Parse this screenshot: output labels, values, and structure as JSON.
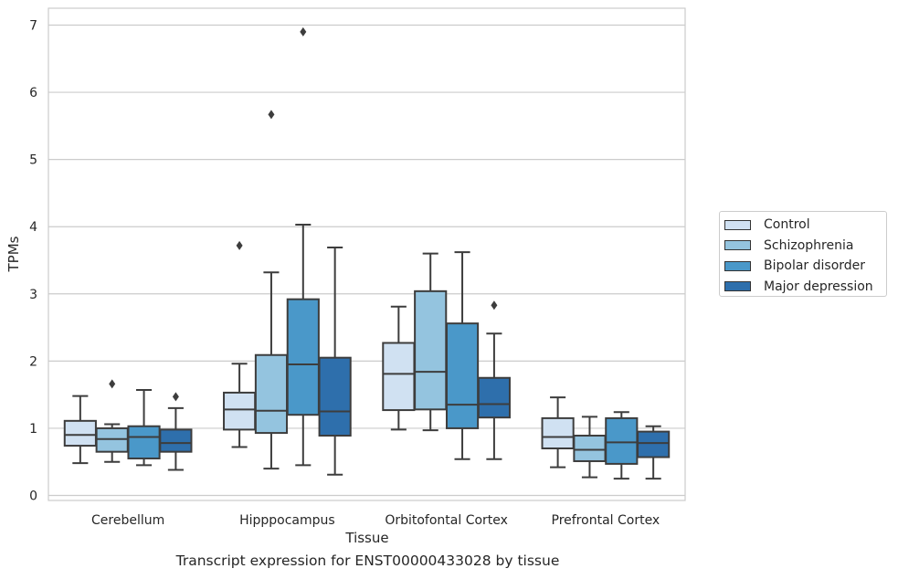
{
  "chart_data": {
    "type": "box",
    "xlabel": "Tissue",
    "ylabel": "TPMs",
    "caption": "Transcript expression for ENST00000433028 by tissue",
    "ylim": [
      -0.05,
      7.25
    ],
    "yticks": [
      "0",
      "1",
      "2",
      "3",
      "4",
      "5",
      "6",
      "7"
    ],
    "grid": true,
    "legend_position": "right",
    "categories": [
      "Cerebellum",
      "Hipppocampus",
      "Orbitofontal Cortex",
      "Prefrontal Cortex"
    ],
    "series": [
      {
        "name": "Control",
        "color": "#d0e1f2",
        "boxes": [
          {
            "whislo": 0.48,
            "q1": 0.74,
            "med": 0.9,
            "q3": 1.11,
            "whishi": 1.48,
            "fliers": []
          },
          {
            "whislo": 0.72,
            "q1": 0.98,
            "med": 1.28,
            "q3": 1.53,
            "whishi": 1.96,
            "fliers": [
              3.72
            ]
          },
          {
            "whislo": 0.98,
            "q1": 1.27,
            "med": 1.81,
            "q3": 2.27,
            "whishi": 2.81,
            "fliers": []
          },
          {
            "whislo": 0.42,
            "q1": 0.7,
            "med": 0.87,
            "q3": 1.15,
            "whishi": 1.46,
            "fliers": []
          }
        ]
      },
      {
        "name": "Schizophrenia",
        "color": "#94c4df",
        "boxes": [
          {
            "whislo": 0.5,
            "q1": 0.65,
            "med": 0.84,
            "q3": 1.0,
            "whishi": 1.06,
            "fliers": [
              1.66
            ]
          },
          {
            "whislo": 0.4,
            "q1": 0.93,
            "med": 1.26,
            "q3": 2.09,
            "whishi": 3.32,
            "fliers": [
              5.67
            ]
          },
          {
            "whislo": 0.97,
            "q1": 1.28,
            "med": 1.84,
            "q3": 3.04,
            "whishi": 3.6,
            "fliers": []
          },
          {
            "whislo": 0.27,
            "q1": 0.51,
            "med": 0.68,
            "q3": 0.89,
            "whishi": 1.17,
            "fliers": []
          }
        ]
      },
      {
        "name": "Bipolar disorder",
        "color": "#4a98c9",
        "boxes": [
          {
            "whislo": 0.45,
            "q1": 0.55,
            "med": 0.87,
            "q3": 1.03,
            "whishi": 1.57,
            "fliers": []
          },
          {
            "whislo": 0.45,
            "q1": 1.2,
            "med": 1.95,
            "q3": 2.92,
            "whishi": 4.03,
            "fliers": [
              6.9
            ]
          },
          {
            "whislo": 0.54,
            "q1": 1.0,
            "med": 1.35,
            "q3": 2.56,
            "whishi": 3.62,
            "fliers": []
          },
          {
            "whislo": 0.25,
            "q1": 0.47,
            "med": 0.79,
            "q3": 1.15,
            "whishi": 1.24,
            "fliers": []
          }
        ]
      },
      {
        "name": "Major depression",
        "color": "#2e6fac",
        "boxes": [
          {
            "whislo": 0.38,
            "q1": 0.65,
            "med": 0.78,
            "q3": 0.98,
            "whishi": 1.3,
            "fliers": [
              1.47
            ]
          },
          {
            "whislo": 0.31,
            "q1": 0.89,
            "med": 1.25,
            "q3": 2.05,
            "whishi": 3.69,
            "fliers": []
          },
          {
            "whislo": 0.54,
            "q1": 1.16,
            "med": 1.36,
            "q3": 1.75,
            "whishi": 2.41,
            "fliers": [
              2.83
            ]
          },
          {
            "whislo": 0.25,
            "q1": 0.57,
            "med": 0.78,
            "q3": 0.95,
            "whishi": 1.03,
            "fliers": []
          }
        ]
      }
    ]
  }
}
